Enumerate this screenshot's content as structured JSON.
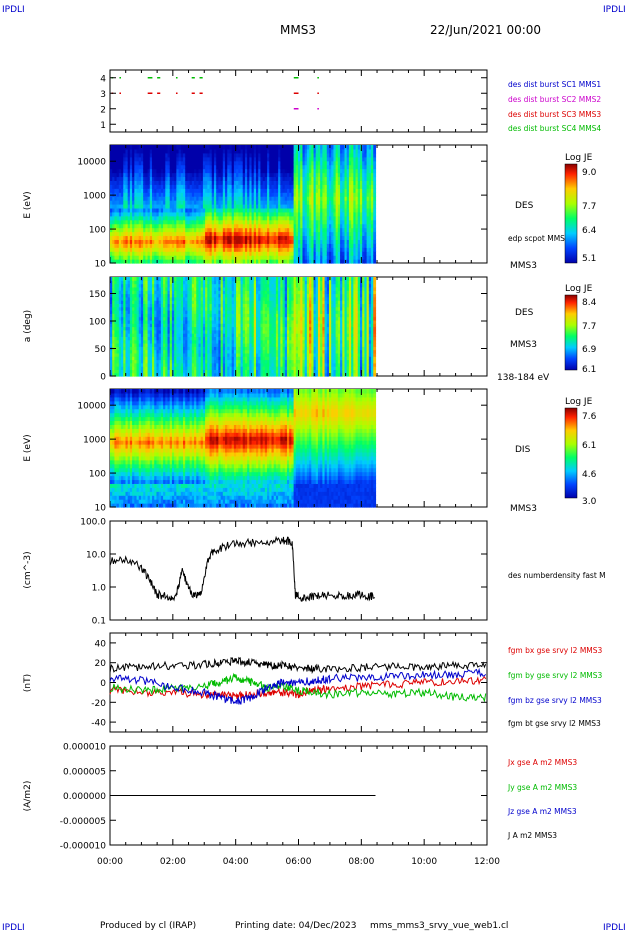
{
  "header": {
    "corner_left": "IPDLI",
    "corner_right": "IPDLI",
    "title": "MMS3",
    "date": "22/Jun/2021 00:00"
  },
  "footer": {
    "produced": "Produced by cl (IRAP)",
    "printing": "Printing date: 04/Dec/2023",
    "file": "mms_mms3_srvy_vue_web1.cl",
    "corner_left": "IPDLI",
    "corner_right": "IPDLI"
  },
  "time_axis": {
    "ticks": [
      "00:00",
      "02:00",
      "04:00",
      "06:00",
      "08:00",
      "10:00",
      "12:00"
    ],
    "range_hours": [
      0,
      12
    ]
  },
  "colors": {
    "mms1": "#0000cc",
    "mms2": "#cc00cc",
    "mms3": "#dd0000",
    "mms4": "#00bb00",
    "black": "#000000"
  },
  "chart_data": [
    {
      "type": "scatter",
      "panel": "burst-availability",
      "y_ticks": [
        "4",
        "3",
        "2",
        "1"
      ],
      "ylim": [
        0.5,
        4.5
      ],
      "series": [
        {
          "name": "des dist burst SC1 MMS1",
          "color": "#0000cc",
          "y": 1,
          "intervals": []
        },
        {
          "name": "des dist burst SC2 MMS2",
          "color": "#cc00cc",
          "y": 2,
          "intervals": [
            [
              5.85,
              6.0
            ],
            [
              6.6,
              6.65
            ]
          ]
        },
        {
          "name": "des dist burst SC3 MMS3",
          "color": "#dd0000",
          "y": 3,
          "intervals": [
            [
              0.05,
              0.1
            ],
            [
              0.3,
              0.35
            ],
            [
              1.2,
              1.35
            ],
            [
              1.5,
              1.6
            ],
            [
              2.1,
              2.15
            ],
            [
              2.6,
              2.7
            ],
            [
              2.85,
              2.95
            ],
            [
              5.85,
              6.0
            ],
            [
              6.6,
              6.65
            ]
          ]
        },
        {
          "name": "des dist burst SC4 MMS4",
          "color": "#00bb00",
          "y": 4,
          "intervals": [
            [
              0.05,
              0.1
            ],
            [
              0.3,
              0.35
            ],
            [
              1.2,
              1.35
            ],
            [
              1.5,
              1.6
            ],
            [
              2.1,
              2.15
            ],
            [
              2.6,
              2.7
            ],
            [
              2.85,
              2.95
            ],
            [
              5.85,
              6.0
            ],
            [
              6.6,
              6.65
            ]
          ]
        }
      ]
    },
    {
      "type": "heatmap",
      "panel": "des-energy-spectrogram",
      "ylabel": "E (eV)",
      "y_scale": "log",
      "y_ticks": [
        "10000",
        "1000",
        "100",
        "10"
      ],
      "ylim": [
        10,
        30000
      ],
      "data_end_hours": 8.45,
      "label": "DES",
      "sublabel": "MMS3",
      "overlay_label": "edp scpot MMS3",
      "colorbar": {
        "title": "Log JE",
        "ticks": [
          "9.0",
          "7.7",
          "6.4",
          "5.1"
        ],
        "range": [
          5.1,
          9.0
        ]
      }
    },
    {
      "type": "heatmap",
      "panel": "des-pitch-angle",
      "ylabel": "a (deg)",
      "y_ticks": [
        "150",
        "100",
        "50",
        "0"
      ],
      "ylim": [
        0,
        180
      ],
      "data_end_hours": 8.45,
      "label": "DES",
      "sublabel": "MMS3",
      "range_label": "138-184 eV",
      "colorbar": {
        "title": "Log JE",
        "ticks": [
          "8.4",
          "7.7",
          "6.9",
          "6.1"
        ],
        "range": [
          6.1,
          8.4
        ]
      }
    },
    {
      "type": "heatmap",
      "panel": "dis-energy-spectrogram",
      "ylabel": "E (eV)",
      "y_scale": "log",
      "y_ticks": [
        "10000",
        "1000",
        "100",
        "10"
      ],
      "ylim": [
        10,
        30000
      ],
      "data_end_hours": 8.45,
      "label": "DIS",
      "sublabel": "MMS3",
      "colorbar": {
        "title": "Log JE",
        "ticks": [
          "7.6",
          "6.1",
          "4.6",
          "3.0"
        ],
        "range": [
          3.0,
          7.6
        ]
      }
    },
    {
      "type": "line",
      "panel": "density",
      "ylabel": "(cm^-3)",
      "y_scale": "log",
      "y_ticks": [
        "100.0",
        "10.0",
        "1.0",
        "0.1"
      ],
      "ylim": [
        0.1,
        100
      ],
      "series": [
        {
          "name": "des numberdensity fast M",
          "color": "#000000",
          "x": [
            0.0,
            0.5,
            1.0,
            1.2,
            1.5,
            1.8,
            2.1,
            2.3,
            2.5,
            2.7,
            2.9,
            3.1,
            3.3,
            3.6,
            4.0,
            4.5,
            5.0,
            5.5,
            5.8,
            5.9,
            6.0,
            6.3,
            6.6,
            7.0,
            7.4,
            7.8,
            8.2,
            8.45
          ],
          "y": [
            6,
            7,
            4,
            2,
            0.6,
            0.5,
            0.5,
            3,
            1,
            0.5,
            0.6,
            6,
            13,
            16,
            20,
            22,
            24,
            25,
            24,
            0.6,
            0.5,
            0.45,
            0.55,
            0.6,
            0.5,
            0.6,
            0.55,
            0.5
          ]
        }
      ]
    },
    {
      "type": "line",
      "panel": "magnetic-field",
      "ylabel": "(nT)",
      "y_ticks": [
        "40",
        "20",
        "0",
        "-20",
        "-40"
      ],
      "ylim": [
        -50,
        50
      ],
      "series": [
        {
          "name": "fgm bx gse srvy l2 MMS3",
          "color": "#dd0000",
          "x": [
            0,
            1,
            2,
            3,
            3.5,
            4,
            4.5,
            5,
            5.5,
            6,
            6.5,
            7,
            8,
            9,
            10,
            11,
            12
          ],
          "y": [
            -8,
            -10,
            -10,
            -12,
            -12,
            -14,
            -12,
            -10,
            -10,
            -12,
            -8,
            -6,
            -4,
            -2,
            0,
            2,
            2
          ]
        },
        {
          "name": "fgm by gse srvy l2 MMS3",
          "color": "#00bb00",
          "x": [
            0,
            1,
            2,
            3,
            3.5,
            4,
            4.5,
            5,
            5.5,
            6,
            6.5,
            7,
            8,
            9,
            10,
            11,
            12
          ],
          "y": [
            -5,
            -8,
            -6,
            -4,
            0,
            5,
            0,
            -5,
            -3,
            -8,
            -10,
            -12,
            -10,
            -12,
            -10,
            -15,
            -15
          ]
        },
        {
          "name": "fgm bz gse srvy l2 MMS3",
          "color": "#0000cc",
          "x": [
            0,
            1,
            2,
            3,
            3.5,
            4,
            4.5,
            5,
            5.5,
            6,
            6.5,
            7,
            8,
            9,
            10,
            11,
            12
          ],
          "y": [
            5,
            2,
            -5,
            -10,
            -15,
            -20,
            -15,
            -5,
            0,
            0,
            2,
            4,
            5,
            6,
            8,
            8,
            10
          ]
        },
        {
          "name": "fgm bt gse srvy l2 MMS3",
          "color": "#000000",
          "x": [
            0,
            1,
            2,
            3,
            3.5,
            4,
            4.5,
            5,
            5.5,
            6,
            6.5,
            7,
            8,
            9,
            10,
            11,
            12
          ],
          "y": [
            14,
            16,
            17,
            18,
            20,
            22,
            20,
            18,
            17,
            15,
            14,
            14,
            15,
            16,
            16,
            17,
            18
          ]
        }
      ]
    },
    {
      "type": "line",
      "panel": "current-density",
      "ylabel": "(A/m2)",
      "y_ticks": [
        "0.000010",
        "0.000005",
        "0.000000",
        "-0.000005",
        "-0.000010"
      ],
      "ylim": [
        -1e-05,
        1e-05
      ],
      "series": [
        {
          "name": "Jx gse A m2 MMS3",
          "color": "#dd0000",
          "x": [
            0,
            8.45
          ],
          "y": [
            0,
            0
          ]
        },
        {
          "name": "Jy gse A m2 MMS3",
          "color": "#00bb00",
          "x": [
            0,
            8.45
          ],
          "y": [
            0,
            0
          ]
        },
        {
          "name": "Jz gse A m2 MMS3",
          "color": "#0000cc",
          "x": [
            0,
            8.45
          ],
          "y": [
            0,
            0
          ]
        },
        {
          "name": "J A m2 MMS3",
          "color": "#000000",
          "x": [
            0,
            8.45
          ],
          "y": [
            0,
            0
          ]
        }
      ]
    }
  ]
}
